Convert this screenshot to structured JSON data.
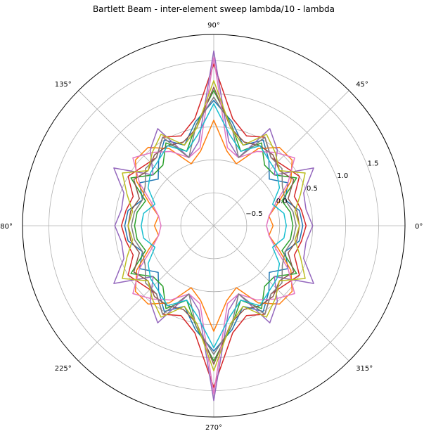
{
  "chart_data": {
    "type": "line",
    "projection": "polar",
    "title": "Bartlett Beam - inter-element sweep lambda/10 - lambda",
    "theta_unit": "deg",
    "theta_ticks": [
      "0°",
      "45°",
      "90°",
      "135°",
      "180°",
      "225°",
      "270°",
      "315°"
    ],
    "r_ticks": [
      "−0.5",
      "0.0",
      "0.5",
      "1.0",
      "1.5"
    ],
    "r_tick_values": [
      -0.5,
      0.0,
      0.5,
      1.0,
      1.5
    ],
    "rlim": [
      -1.0,
      1.9
    ],
    "grid": true,
    "legend": "none",
    "theta": [
      0,
      10,
      20,
      30,
      40,
      50,
      60,
      70,
      80,
      90
    ],
    "series": [
      {
        "color": "#1f77b4",
        "r": [
          0.35,
          0.32,
          0.15,
          0.3,
          0.1,
          0.3,
          0.5,
          0.3,
          0.6,
          0.9
        ]
      },
      {
        "color": "#ff7f0e",
        "r": [
          -0.1,
          -0.15,
          0.05,
          0.35,
          0.55,
          0.55,
          0.35,
          0.0,
          0.15,
          0.6
        ]
      },
      {
        "color": "#2ca02c",
        "r": [
          0.2,
          0.18,
          0.1,
          0.45,
          0.2,
          0.2,
          0.45,
          0.2,
          0.55,
          1.05
        ]
      },
      {
        "color": "#d62728",
        "r": [
          0.4,
          0.35,
          0.3,
          0.5,
          0.4,
          0.35,
          0.55,
          0.45,
          0.65,
          1.45
        ]
      },
      {
        "color": "#9467bd",
        "r": [
          0.5,
          0.42,
          0.45,
          0.75,
          0.2,
          0.5,
          0.7,
          0.1,
          0.3,
          1.65
        ]
      },
      {
        "color": "#8c564b",
        "r": [
          0.3,
          0.28,
          0.2,
          0.4,
          0.3,
          0.4,
          0.4,
          0.35,
          0.5,
          1.1
        ]
      },
      {
        "color": "#e377c2",
        "r": [
          -0.2,
          -0.15,
          0.0,
          0.3,
          0.6,
          0.45,
          0.3,
          0.1,
          0.2,
          1.55
        ]
      },
      {
        "color": "#7f7f7f",
        "r": [
          0.25,
          0.22,
          0.15,
          0.2,
          0.35,
          0.35,
          0.55,
          0.1,
          0.55,
          0.95
        ]
      },
      {
        "color": "#bcbd22",
        "r": [
          0.3,
          0.25,
          0.4,
          0.6,
          0.3,
          0.45,
          0.6,
          0.3,
          0.5,
          1.2
        ]
      },
      {
        "color": "#17becf",
        "r": [
          0.1,
          0.08,
          -0.05,
          0.15,
          0.25,
          0.3,
          0.4,
          0.2,
          0.4,
          0.85
        ]
      }
    ]
  }
}
